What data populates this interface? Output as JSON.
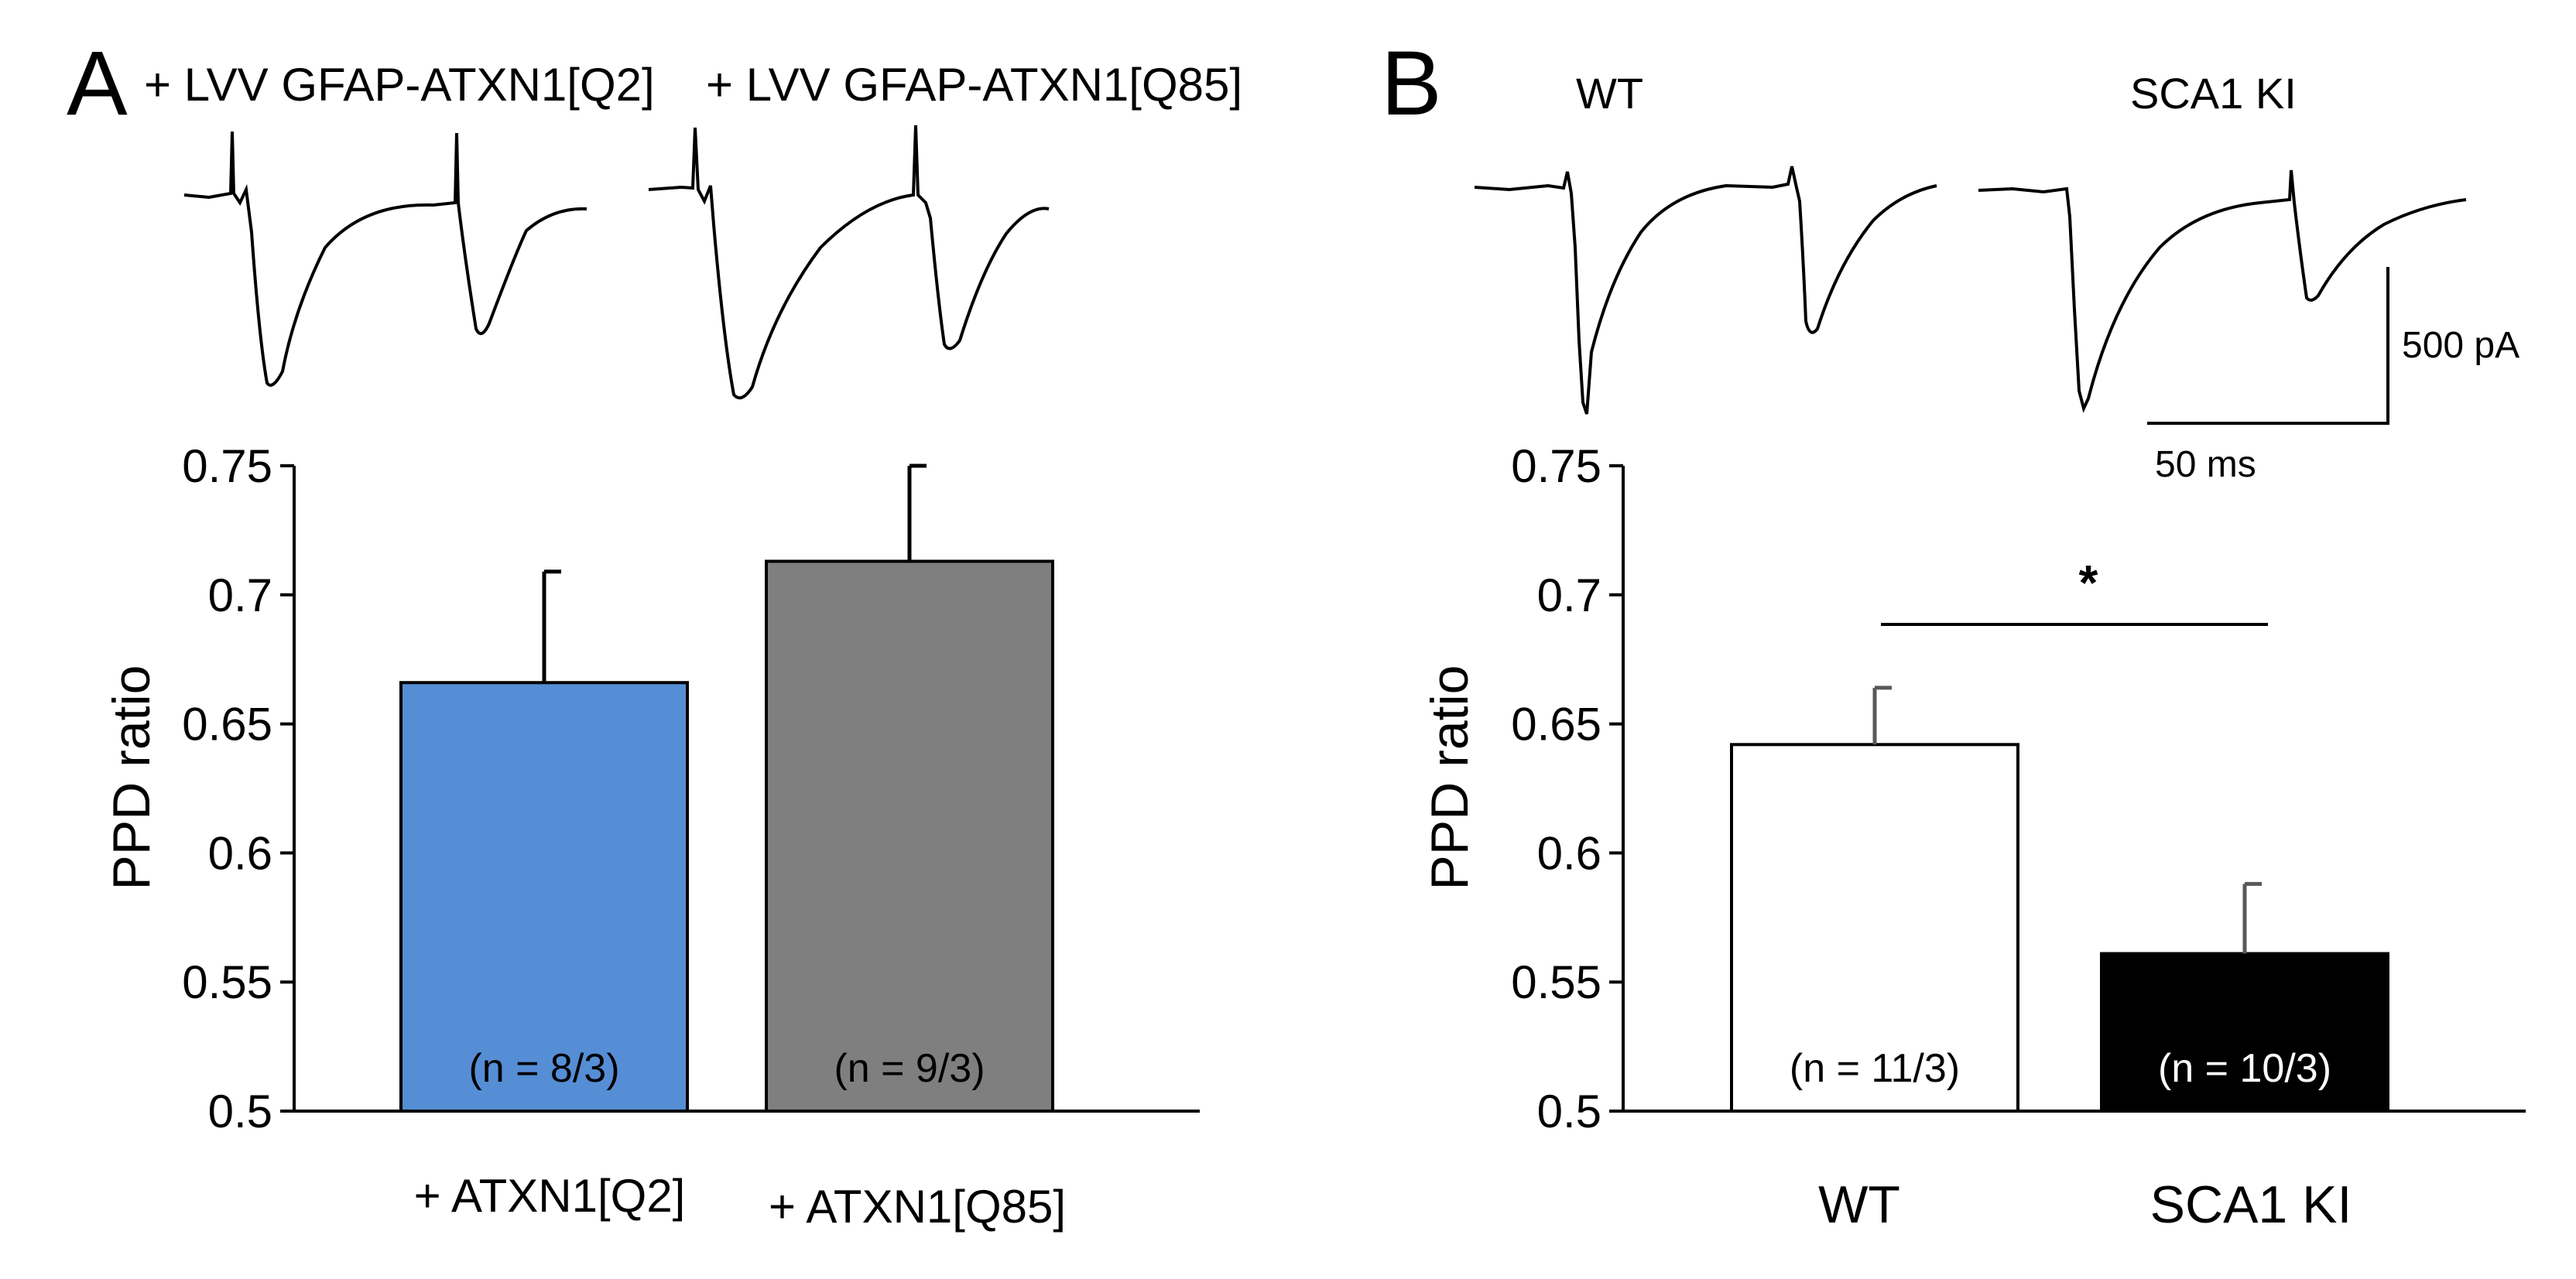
{
  "panels": {
    "a": {
      "letter": "A",
      "trace_labels": [
        "+ LVV GFAP-ATXN1[Q2]",
        "+ LVV GFAP-ATXN1[Q85]"
      ]
    },
    "b": {
      "letter": "B",
      "trace_labels": [
        "WT",
        "SCA1 KI"
      ],
      "scale_bar": {
        "amplitude_label": "500 pA",
        "time_label": "50 ms"
      }
    }
  },
  "chart_data": [
    {
      "type": "bar",
      "panel": "A",
      "ylabel": "PPD ratio",
      "ylim": [
        0.5,
        0.75
      ],
      "yticks": [
        0.5,
        0.55,
        0.6,
        0.65,
        0.7,
        0.75
      ],
      "ytick_labels": [
        "0.5",
        "0.55",
        "0.6",
        "0.65",
        "0.7",
        "0.75"
      ],
      "categories": [
        "+ ATXN1[Q2]",
        "+ ATXN1[Q85]"
      ],
      "values": [
        0.666,
        0.713
      ],
      "errors": [
        0.043,
        0.037
      ],
      "bar_labels": [
        "(n = 8/3)",
        "(n = 9/3)"
      ],
      "colors": [
        "#558ed5",
        "#7f7f7f"
      ],
      "label_colors": [
        "#000000",
        "#000000"
      ],
      "error_color": "#000000"
    },
    {
      "type": "bar",
      "panel": "B",
      "ylabel": "PPD ratio",
      "ylim": [
        0.5,
        0.75
      ],
      "yticks": [
        0.5,
        0.55,
        0.6,
        0.65,
        0.7,
        0.75
      ],
      "ytick_labels": [
        "0.5",
        "0.55",
        "0.6",
        "0.65",
        "0.7",
        "0.75"
      ],
      "categories": [
        "WT",
        "SCA1 KI"
      ],
      "values": [
        0.642,
        0.561
      ],
      "errors": [
        0.022,
        0.027
      ],
      "bar_labels": [
        "(n = 11/3)",
        "(n = 10/3)"
      ],
      "colors": [
        "#ffffff",
        "#000000"
      ],
      "label_colors": [
        "#000000",
        "#ffffff"
      ],
      "error_color": "#595959",
      "significance": {
        "label": "*",
        "between": [
          0,
          1
        ]
      }
    }
  ]
}
